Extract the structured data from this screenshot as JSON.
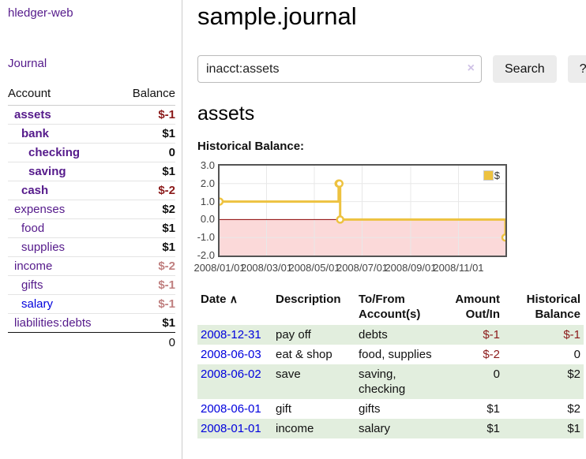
{
  "palette": {
    "link_purple": "#551a8b",
    "link_blue": "#0000dd",
    "negative_strong": "#8b1a1a",
    "negative_muted": "#c08080",
    "row_stripe_green": "#e2eede",
    "chart_line_gold": "#edc240",
    "chart_negative_fill": "#fbd9d9",
    "chart_zero_line": "#8b0000"
  },
  "app": {
    "brand": "hledger-web",
    "nav_journal": "Journal"
  },
  "sidebar": {
    "columns": {
      "account": "Account",
      "balance": "Balance"
    },
    "accounts": [
      {
        "name": "assets",
        "balance": "$-1",
        "variant": "d1 bold purple neg"
      },
      {
        "name": "bank",
        "balance": "$1",
        "variant": "d2 bold purple"
      },
      {
        "name": "checking",
        "balance": "0",
        "variant": "d3 bold purple"
      },
      {
        "name": "saving",
        "balance": "$1",
        "variant": "d3 bold purple"
      },
      {
        "name": "cash",
        "balance": "$-2",
        "variant": "d2 bold purple neg"
      },
      {
        "name": "expenses",
        "balance": "$2",
        "variant": "d1 purple"
      },
      {
        "name": "food",
        "balance": "$1",
        "variant": "d2 purple"
      },
      {
        "name": "supplies",
        "balance": "$1",
        "variant": "d2 purple"
      },
      {
        "name": "income",
        "balance": "$-2",
        "variant": "d1 purple neg"
      },
      {
        "name": "gifts",
        "balance": "$-1",
        "variant": "d2 purple neg"
      },
      {
        "name": "salary",
        "balance": "$-1",
        "variant": "d2 blue neg"
      },
      {
        "name": "liabilities:debts",
        "balance": "$1",
        "variant": "d1 purple"
      }
    ],
    "total": "0"
  },
  "main": {
    "title": "sample.journal",
    "search": {
      "value": "inacct:assets",
      "clear_icon": "×",
      "search_label": "Search",
      "help_label": "?"
    },
    "account_title": "assets",
    "chart_title": "Historical Balance:"
  },
  "chart_data": {
    "type": "line",
    "step": true,
    "title": "Historical Balance:",
    "series": [
      {
        "name": "$",
        "color": "#edc240",
        "points": [
          [
            "2008-01-01",
            1
          ],
          [
            "2008-06-01",
            2
          ],
          [
            "2008-06-02",
            2
          ],
          [
            "2008-06-03",
            0
          ],
          [
            "2008-12-31",
            -1
          ]
        ]
      }
    ],
    "x_range": [
      "2008-01-01",
      "2008-12-31"
    ],
    "ylim": [
      -2,
      3
    ],
    "yticks": [
      "3.0",
      "2.0",
      "1.0",
      "0.0",
      "-1.0",
      "-2.0"
    ],
    "xticks": [
      {
        "label": "2008/01/01",
        "date": "2008-01-01"
      },
      {
        "label": "2008/03/01",
        "date": "2008-03-01"
      },
      {
        "label": "2008/05/01",
        "date": "2008-05-01"
      },
      {
        "label": "2008/07/01",
        "date": "2008-07-01"
      },
      {
        "label": "2008/09/01",
        "date": "2008-09-01"
      },
      {
        "label": "2008/11/01",
        "date": "2008-11-01"
      }
    ],
    "legend": {
      "label": "$",
      "position": "top-right"
    },
    "grid": true,
    "negative_fill": "#fbd9d9",
    "zero_line_color": "#8b0000"
  },
  "register": {
    "headers": {
      "date": "Date",
      "sort_icon": "∧",
      "description": "Description",
      "accounts": "To/From Account(s)",
      "amount": "Amount Out/In",
      "balance": "Historical Balance"
    },
    "rows": [
      {
        "date": "2008-12-31",
        "description": "pay off",
        "accounts": "debts",
        "amount": "$-1",
        "amount_variant": "neg",
        "balance": "$-1",
        "balance_variant": "neg",
        "row_variant": "alt"
      },
      {
        "date": "2008-06-03",
        "description": "eat & shop",
        "accounts": "food, supplies",
        "amount": "$-2",
        "amount_variant": "neg",
        "balance": "0",
        "balance_variant": "",
        "row_variant": ""
      },
      {
        "date": "2008-06-02",
        "description": "save",
        "accounts": "saving, checking",
        "amount": "0",
        "amount_variant": "",
        "balance": "$2",
        "balance_variant": "",
        "row_variant": "alt"
      },
      {
        "date": "2008-06-01",
        "description": "gift",
        "accounts": "gifts",
        "amount": "$1",
        "amount_variant": "",
        "balance": "$2",
        "balance_variant": "",
        "row_variant": ""
      },
      {
        "date": "2008-01-01",
        "description": "income",
        "accounts": "salary",
        "amount": "$1",
        "amount_variant": "",
        "balance": "$1",
        "balance_variant": "",
        "row_variant": "alt"
      }
    ]
  }
}
